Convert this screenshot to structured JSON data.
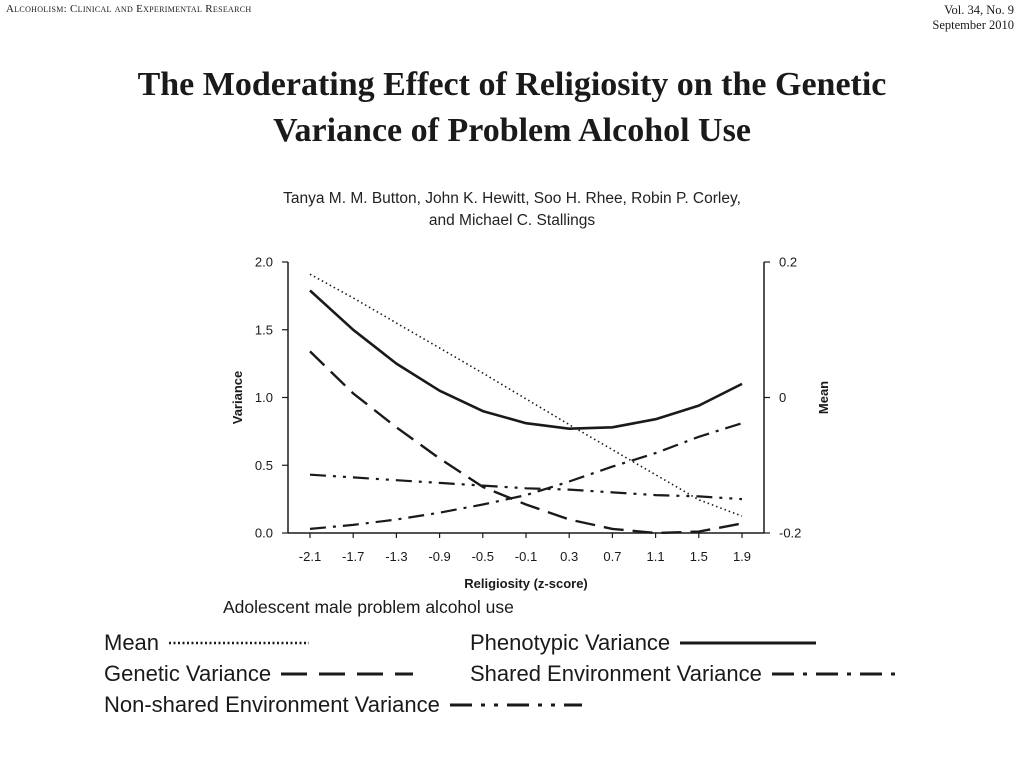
{
  "header": {
    "journal": "Alcoholism: Clinical and Experimental Research",
    "volume": "Vol. 34, No. 9",
    "date": "September 2010"
  },
  "article": {
    "title_line1": "The Moderating Effect of Religiosity on the Genetic",
    "title_line2": "Variance of Problem Alcohol Use",
    "authors_line1": "Tanya M. M. Button, John K. Hewitt, Soo H. Rhee, Robin P. Corley,",
    "authors_line2": "and Michael C. Stallings"
  },
  "chart_data": {
    "type": "line",
    "title": "",
    "xlabel": "Religiosity (z-score)",
    "ylabel": "Variance",
    "y2label": "Mean",
    "caption": "Adolescent male problem alcohol use",
    "x": [
      -2.1,
      -1.7,
      -1.3,
      -0.9,
      -0.5,
      -0.1,
      0.3,
      0.7,
      1.1,
      1.5,
      1.9
    ],
    "x_tick_labels": [
      "-2.1",
      "-1.7",
      "-1.3",
      "-0.9",
      "-0.5",
      "-0.1",
      "0.3",
      "0.7",
      "1.1",
      "1.5",
      "1.9"
    ],
    "ylim": [
      0,
      2.0
    ],
    "y_ticks": [
      0.0,
      0.5,
      1.0,
      1.5,
      2.0
    ],
    "y_tick_labels": [
      "0.0",
      "0.5",
      "1.0",
      "1.5",
      "2.0"
    ],
    "y2lim": [
      -0.2,
      0.2
    ],
    "y2_ticks": [
      -0.2,
      0,
      0.2
    ],
    "y2_tick_labels": [
      "-0.2",
      "0",
      "0.2"
    ],
    "grid": false,
    "series": [
      {
        "name": "Mean",
        "axis": "right",
        "style": "dotted",
        "values": [
          0.182,
          0.147,
          0.11,
          0.073,
          0.036,
          -0.002,
          -0.04,
          -0.077,
          -0.114,
          -0.151,
          -0.175
        ]
      },
      {
        "name": "Phenotypic Variance",
        "axis": "left",
        "style": "solid",
        "values": [
          1.79,
          1.5,
          1.25,
          1.05,
          0.9,
          0.81,
          0.77,
          0.78,
          0.84,
          0.94,
          1.1
        ]
      },
      {
        "name": "Genetic Variance",
        "axis": "left",
        "style": "dashed",
        "values": [
          1.34,
          1.03,
          0.78,
          0.55,
          0.34,
          0.21,
          0.1,
          0.03,
          0.0,
          0.01,
          0.07
        ]
      },
      {
        "name": "Shared Environment Variance",
        "axis": "left",
        "style": "dashdot",
        "values": [
          0.03,
          0.06,
          0.1,
          0.15,
          0.21,
          0.28,
          0.38,
          0.49,
          0.59,
          0.71,
          0.81
        ]
      },
      {
        "name": "Non-shared Environment Variance",
        "axis": "left",
        "style": "dashdotdot",
        "values": [
          0.43,
          0.41,
          0.39,
          0.37,
          0.35,
          0.33,
          0.32,
          0.3,
          0.28,
          0.27,
          0.25
        ]
      }
    ]
  },
  "legend": {
    "mean": "Mean",
    "phenotypic": "Phenotypic Variance",
    "genetic": "Genetic Variance",
    "shared": "Shared Environment Variance",
    "nonshared": "Non-shared Environment Variance"
  }
}
